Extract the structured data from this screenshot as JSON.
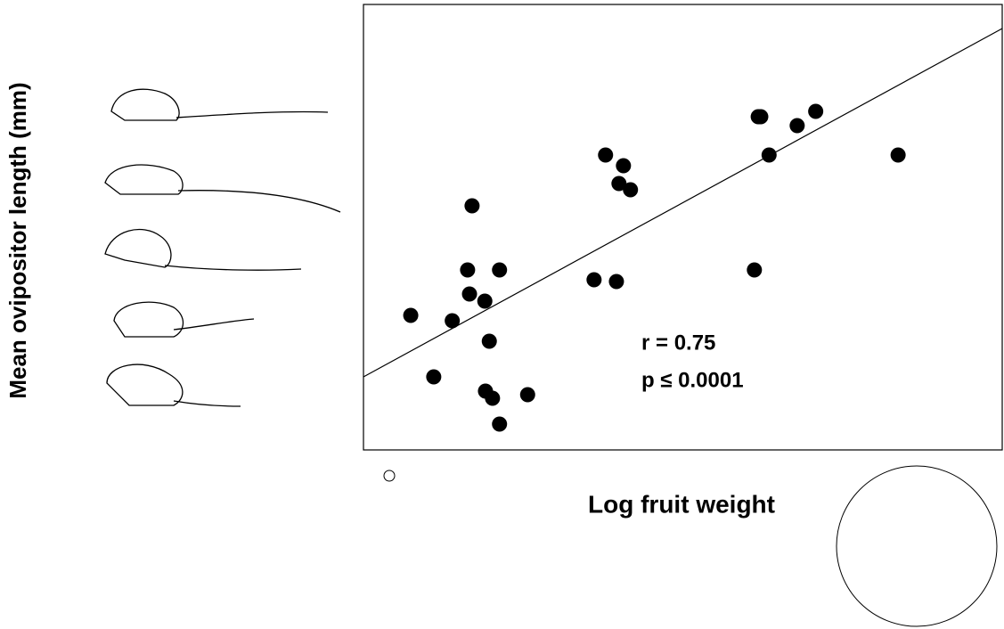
{
  "chart_data": {
    "type": "scatter",
    "x_label": "Log fruit weight",
    "y_label": "Mean ovipositor length (mm)",
    "annotations": [
      "r = 0.75",
      "p ≤  0.0001"
    ],
    "xlim": [
      0,
      100
    ],
    "ylim": [
      0,
      100
    ],
    "color": "#000000",
    "x": [
      7.4,
      11.0,
      13.9,
      16.3,
      16.6,
      17.0,
      19.0,
      19.7,
      19.1,
      20.2,
      21.3,
      21.3,
      25.7,
      36.1,
      39.6,
      37.9,
      40.7,
      40.0,
      41.8,
      61.2,
      61.8,
      62.2,
      63.5,
      67.9,
      70.8,
      83.7
    ],
    "values": [
      30.2,
      16.4,
      29.0,
      40.4,
      35.0,
      54.8,
      33.4,
      24.4,
      13.2,
      11.6,
      40.4,
      5.8,
      12.4,
      38.2,
      37.8,
      66.2,
      63.8,
      59.8,
      58.4,
      40.4,
      74.8,
      74.8,
      66.2,
      72.8,
      76.0,
      66.2
    ],
    "trend_line": {
      "x": [
        0,
        100
      ],
      "y": [
        16.4,
        94.6
      ]
    }
  }
}
